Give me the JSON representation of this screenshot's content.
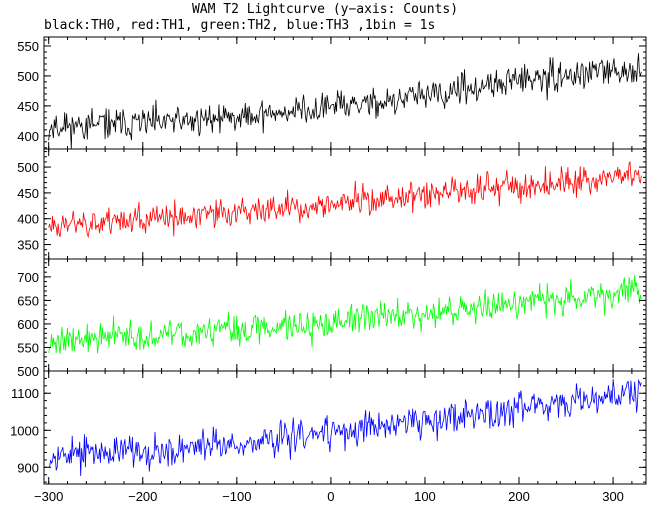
{
  "title": "WAM T2 Lightcurve (y−axis: Counts)",
  "subtitle": "black:TH0, red:TH1, green:TH2, blue:TH3 ,1bin = 1s",
  "chart_data": {
    "type": "line",
    "xlabel": "",
    "ylabel": "Counts",
    "xlim": [
      -305,
      335
    ],
    "x_ticks": [
      -300,
      -200,
      -100,
      0,
      100,
      200,
      300
    ],
    "x_tick_labels": [
      "−300",
      "−200",
      "−100",
      "0",
      "100",
      "200",
      "300"
    ],
    "panels": [
      {
        "series_name": "TH0",
        "color": "#000000",
        "ylim": [
          378,
          565
        ],
        "y_ticks": [
          400,
          450,
          500,
          550
        ],
        "y_tick_labels": [
          "400",
          "450",
          "500",
          "550"
        ],
        "trend": [
          {
            "x": -300,
            "y": 415
          },
          {
            "x": -150,
            "y": 425
          },
          {
            "x": 0,
            "y": 448
          },
          {
            "x": 100,
            "y": 465
          },
          {
            "x": 200,
            "y": 492
          },
          {
            "x": 330,
            "y": 512
          }
        ],
        "noise": 18,
        "seed": 11
      },
      {
        "series_name": "TH1",
        "color": "#ff0000",
        "ylim": [
          322,
          535
        ],
        "y_ticks": [
          350,
          400,
          450,
          500
        ],
        "y_tick_labels": [
          "350",
          "400",
          "450",
          "500"
        ],
        "trend": [
          {
            "x": -300,
            "y": 390
          },
          {
            "x": -150,
            "y": 403
          },
          {
            "x": 0,
            "y": 427
          },
          {
            "x": 100,
            "y": 447
          },
          {
            "x": 200,
            "y": 465
          },
          {
            "x": 330,
            "y": 488
          }
        ],
        "noise": 20,
        "seed": 23
      },
      {
        "series_name": "TH2",
        "color": "#00ff00",
        "ylim": [
          500,
          738
        ],
        "y_ticks": [
          500,
          550,
          600,
          650,
          700
        ],
        "y_tick_labels": [
          "500",
          "550",
          "600",
          "650",
          "700"
        ],
        "trend": [
          {
            "x": -300,
            "y": 565
          },
          {
            "x": -150,
            "y": 578
          },
          {
            "x": 0,
            "y": 605
          },
          {
            "x": 100,
            "y": 622
          },
          {
            "x": 200,
            "y": 645
          },
          {
            "x": 330,
            "y": 672
          }
        ],
        "noise": 24,
        "seed": 37
      },
      {
        "series_name": "TH3",
        "color": "#0000ff",
        "ylim": [
          855,
          1160
        ],
        "y_ticks": [
          900,
          1000,
          1100
        ],
        "y_tick_labels": [
          "900",
          "1000",
          "1100"
        ],
        "trend": [
          {
            "x": -300,
            "y": 935
          },
          {
            "x": -150,
            "y": 950
          },
          {
            "x": 0,
            "y": 992
          },
          {
            "x": 100,
            "y": 1030
          },
          {
            "x": 200,
            "y": 1062
          },
          {
            "x": 330,
            "y": 1108
          }
        ],
        "noise": 32,
        "seed": 53
      }
    ]
  }
}
